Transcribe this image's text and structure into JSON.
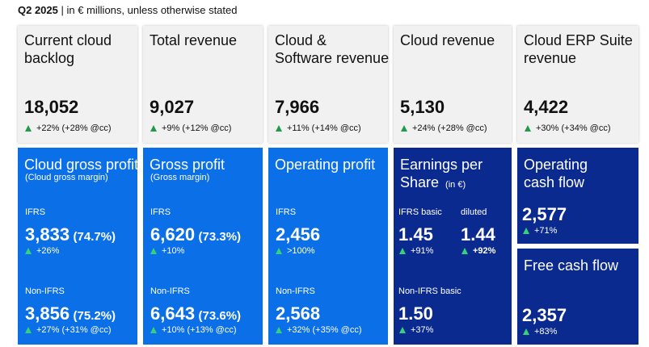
{
  "header": {
    "period": "Q2 2025",
    "note": "| in € millions, unless otherwise stated"
  },
  "top_tiles": [
    {
      "title_lines": [
        "Current cloud",
        "backlog"
      ],
      "value": "18,052",
      "change": "+22% (+28% @cc)"
    },
    {
      "title_lines": [
        "Total revenue"
      ],
      "value": "9,027",
      "change": "+9% (+12% @cc)"
    },
    {
      "title_lines": [
        "Cloud &",
        "Software revenue"
      ],
      "value": "7,966",
      "change": "+11% (+14% @cc)"
    },
    {
      "title_lines": [
        "Cloud revenue"
      ],
      "value": "5,130",
      "change": "+24% (+28% @cc)"
    },
    {
      "title_lines": [
        "Cloud ERP Suite",
        "revenue"
      ],
      "value": "4,422",
      "change": "+30% (+34% @cc)"
    }
  ],
  "profit_tiles": [
    {
      "title": "Cloud gross profit",
      "subtitle": "(Cloud gross margin)",
      "ifrs": {
        "label": "IFRS",
        "value": "3,833",
        "margin": "(74.7%)",
        "change": "+26%"
      },
      "non_ifrs": {
        "label": "Non-IFRS",
        "value": "3,856",
        "margin": "(75.2%)",
        "change": "+27% (+31% @cc)"
      }
    },
    {
      "title": "Gross profit",
      "subtitle": "(Gross margin)",
      "ifrs": {
        "label": "IFRS",
        "value": "6,620",
        "margin": "(73.3%)",
        "change": "+10%"
      },
      "non_ifrs": {
        "label": "Non-IFRS",
        "value": "6,643",
        "margin": "(73.6%)",
        "change": "+10% (+13% @cc)"
      }
    },
    {
      "title": "Operating profit",
      "ifrs": {
        "label": "IFRS",
        "value": "2,456",
        "change": ">100%"
      },
      "non_ifrs": {
        "label": "Non-IFRS",
        "value": "2,568",
        "change": "+32% (+35% @cc)"
      }
    }
  ],
  "eps_tile": {
    "title_lines": [
      "Earnings per",
      "Share"
    ],
    "unit": "(in €)",
    "ifrs_basic": {
      "label": "IFRS basic",
      "value": "1.45",
      "change": "+91%"
    },
    "diluted": {
      "label": "diluted",
      "value": "1.44",
      "change": "+92%"
    },
    "non_ifrs_basic": {
      "label": "Non-IFRS basic",
      "value": "1.50",
      "change": "+37%"
    }
  },
  "cash_tiles": [
    {
      "title_lines": [
        "Operating",
        "cash flow"
      ],
      "value": "2,577",
      "change": "+71%"
    },
    {
      "title_lines": [
        "Free cash flow"
      ],
      "value": "2,357",
      "change": "+83%"
    }
  ]
}
